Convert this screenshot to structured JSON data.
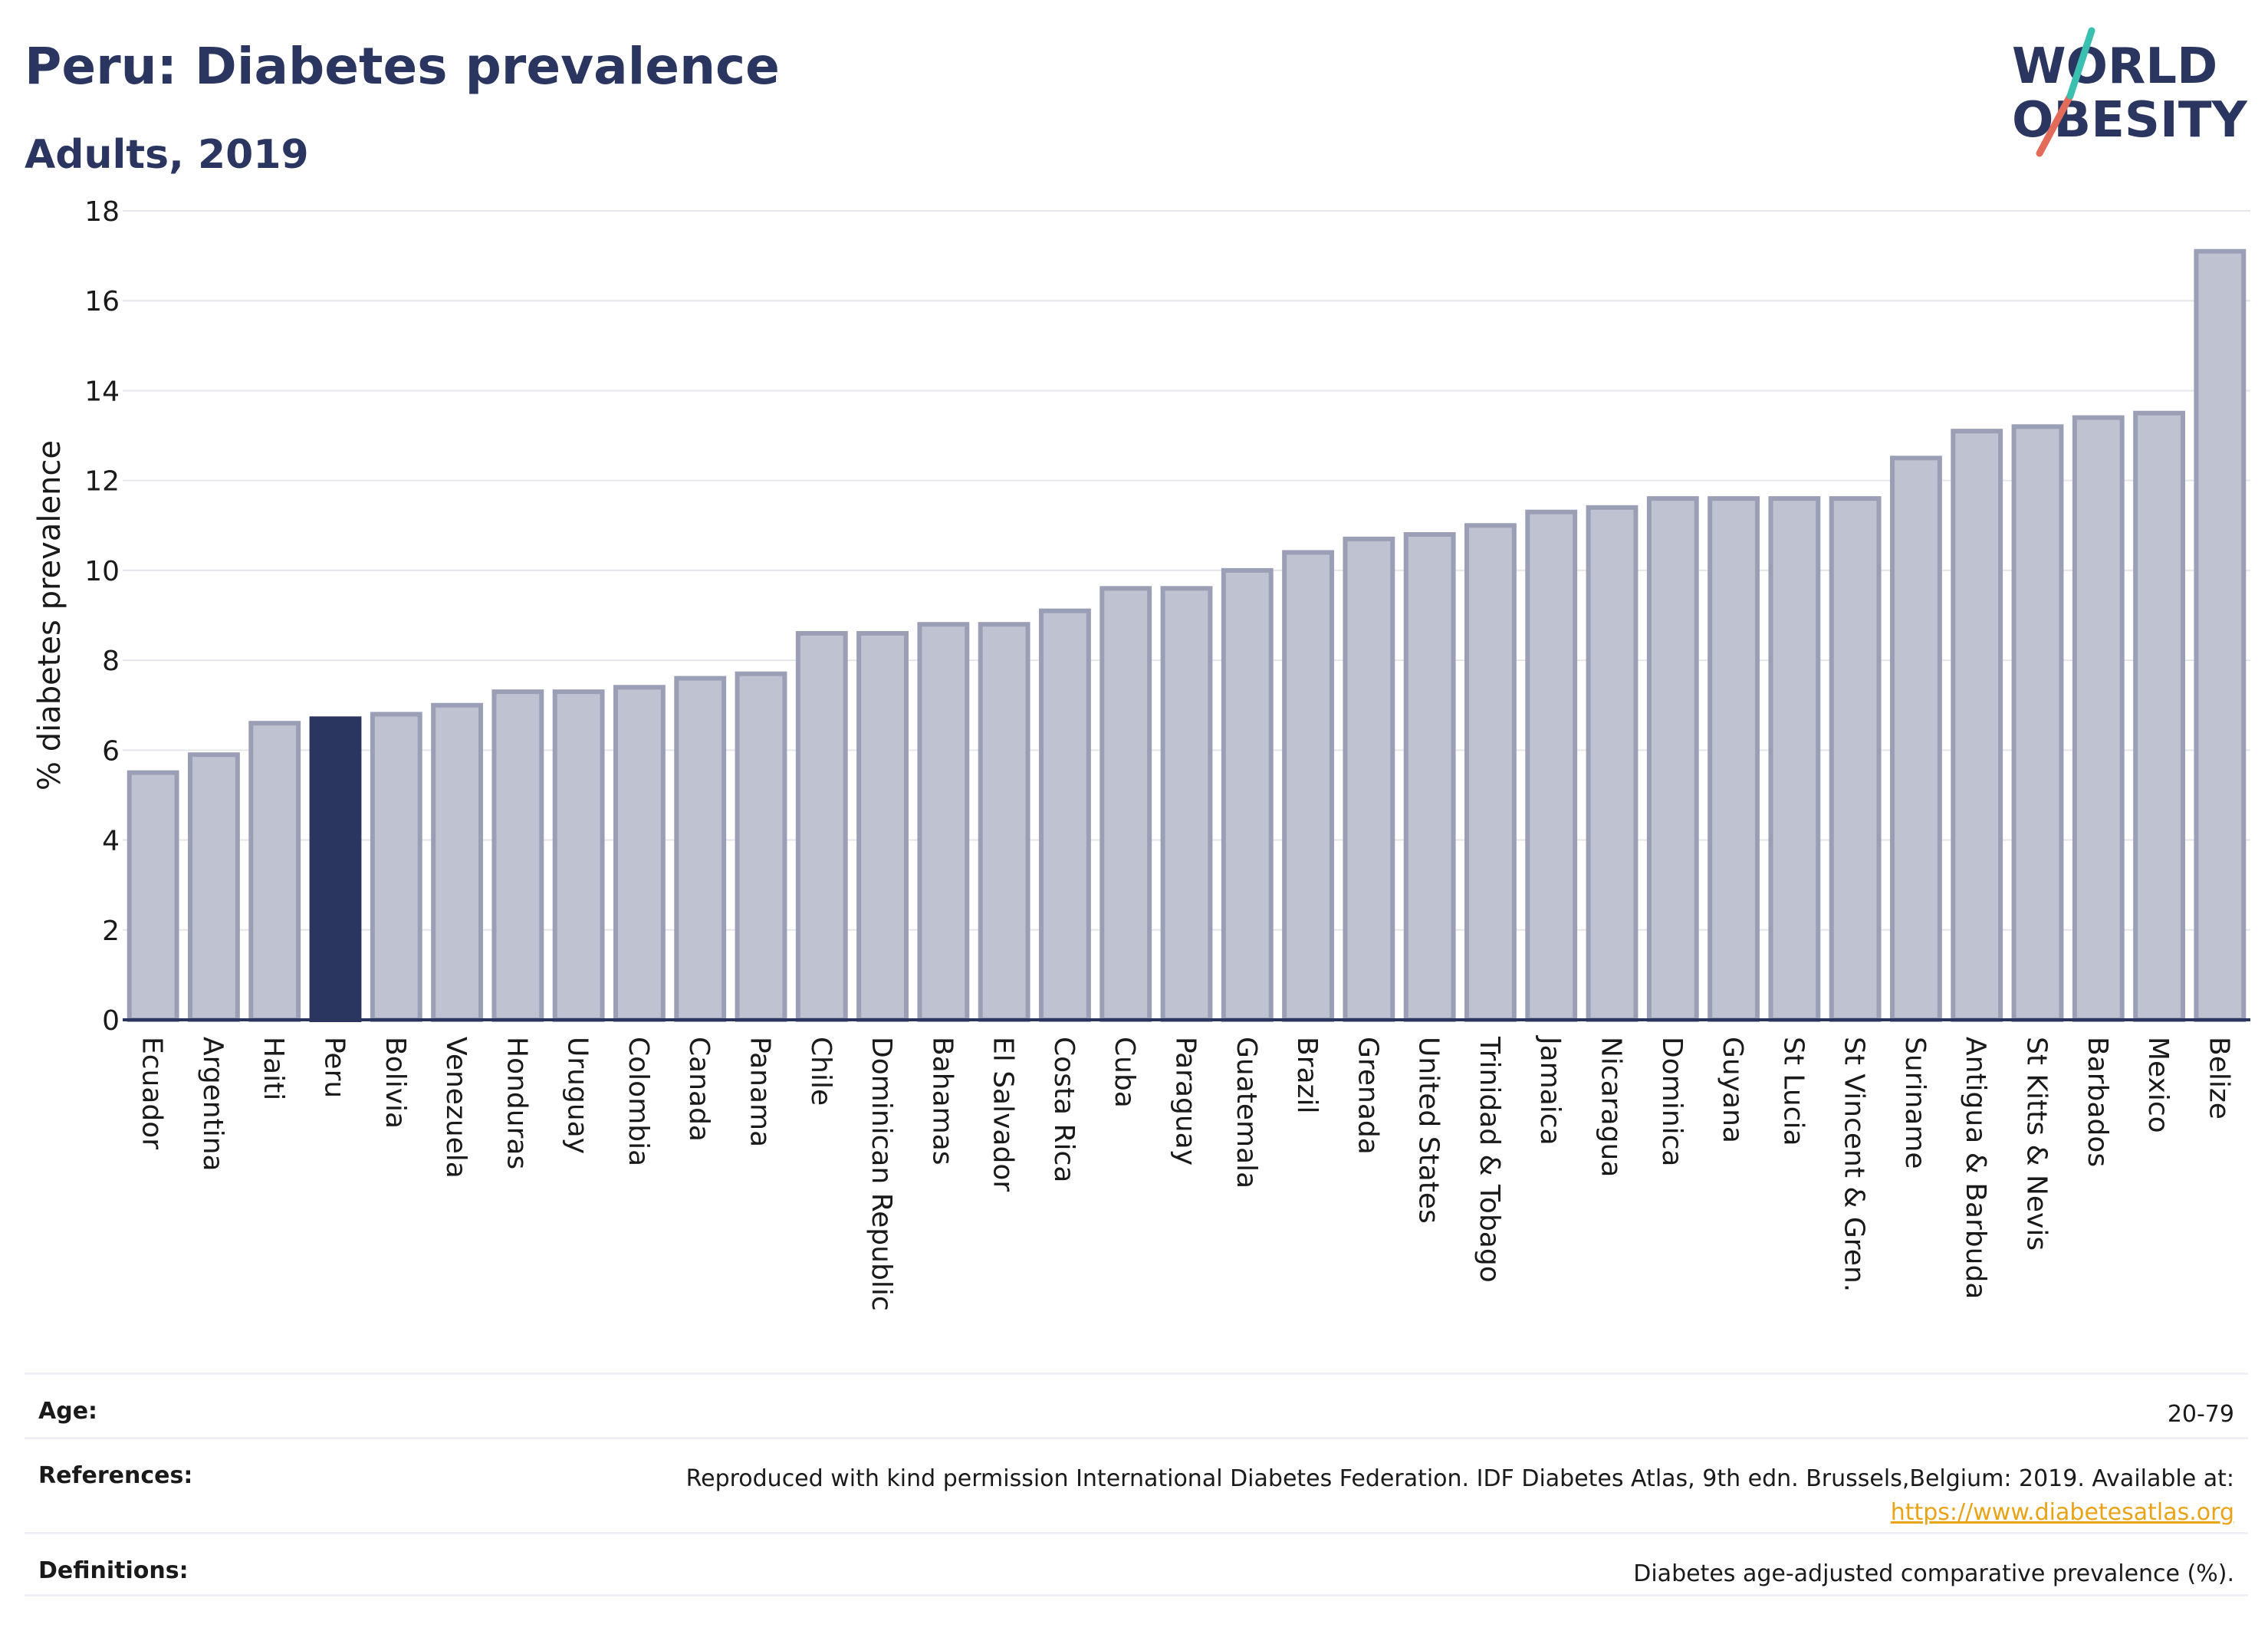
{
  "header": {
    "title": "Peru: Diabetes prevalence",
    "subtitle": "Adults, 2019"
  },
  "logo": {
    "line1": "WORLD",
    "line2": "OBESITY"
  },
  "colors": {
    "highlight": "#2a3560",
    "bar": "#bfc2d0",
    "bar_border": "#9a9fb5",
    "title": "#2a3560",
    "link": "#e8a317",
    "logo_red": "#e36b5a",
    "logo_teal": "#3bbfb0"
  },
  "chart_data": {
    "type": "bar",
    "title": "Peru: Diabetes prevalence",
    "subtitle": "Adults, 2019",
    "ylabel": "% diabetes prevalence",
    "xlabel": "",
    "ylim": [
      0,
      18
    ],
    "yticks": [
      0,
      2,
      4,
      6,
      8,
      10,
      12,
      14,
      16,
      18
    ],
    "grid": true,
    "highlight": "Peru",
    "categories": [
      "Ecuador",
      "Argentina",
      "Haiti",
      "Peru",
      "Bolivia",
      "Venezuela",
      "Honduras",
      "Uruguay",
      "Colombia",
      "Canada",
      "Panama",
      "Chile",
      "Dominican Republic",
      "Bahamas",
      "El Salvador",
      "Costa Rica",
      "Cuba",
      "Paraguay",
      "Guatemala",
      "Brazil",
      "Grenada",
      "United States",
      "Trinidad & Tobago",
      "Jamaica",
      "Nicaragua",
      "Dominica",
      "Guyana",
      "St Lucia",
      "St Vincent & Gren.",
      "Suriname",
      "Antigua & Barbuda",
      "St Kitts & Nevis",
      "Barbados",
      "Mexico",
      "Belize"
    ],
    "values": [
      5.5,
      5.9,
      6.6,
      6.7,
      6.8,
      7.0,
      7.3,
      7.3,
      7.4,
      7.6,
      7.7,
      8.6,
      8.6,
      8.8,
      8.8,
      9.1,
      9.6,
      9.6,
      10.0,
      10.4,
      10.7,
      10.8,
      11.0,
      11.3,
      11.4,
      11.6,
      11.6,
      11.6,
      11.6,
      12.5,
      13.1,
      13.2,
      13.4,
      13.5,
      17.1
    ]
  },
  "info": {
    "age_label": "Age:",
    "age_value": "20-79",
    "references_label": "References:",
    "references_text": "Reproduced with kind permission International Diabetes Federation. IDF Diabetes Atlas, 9th edn. Brussels,Belgium: 2019. Available at:",
    "references_link": "https://www.diabetesatlas.org",
    "definitions_label": "Definitions:",
    "definitions_value": "Diabetes age-adjusted comparative prevalence (%)."
  }
}
